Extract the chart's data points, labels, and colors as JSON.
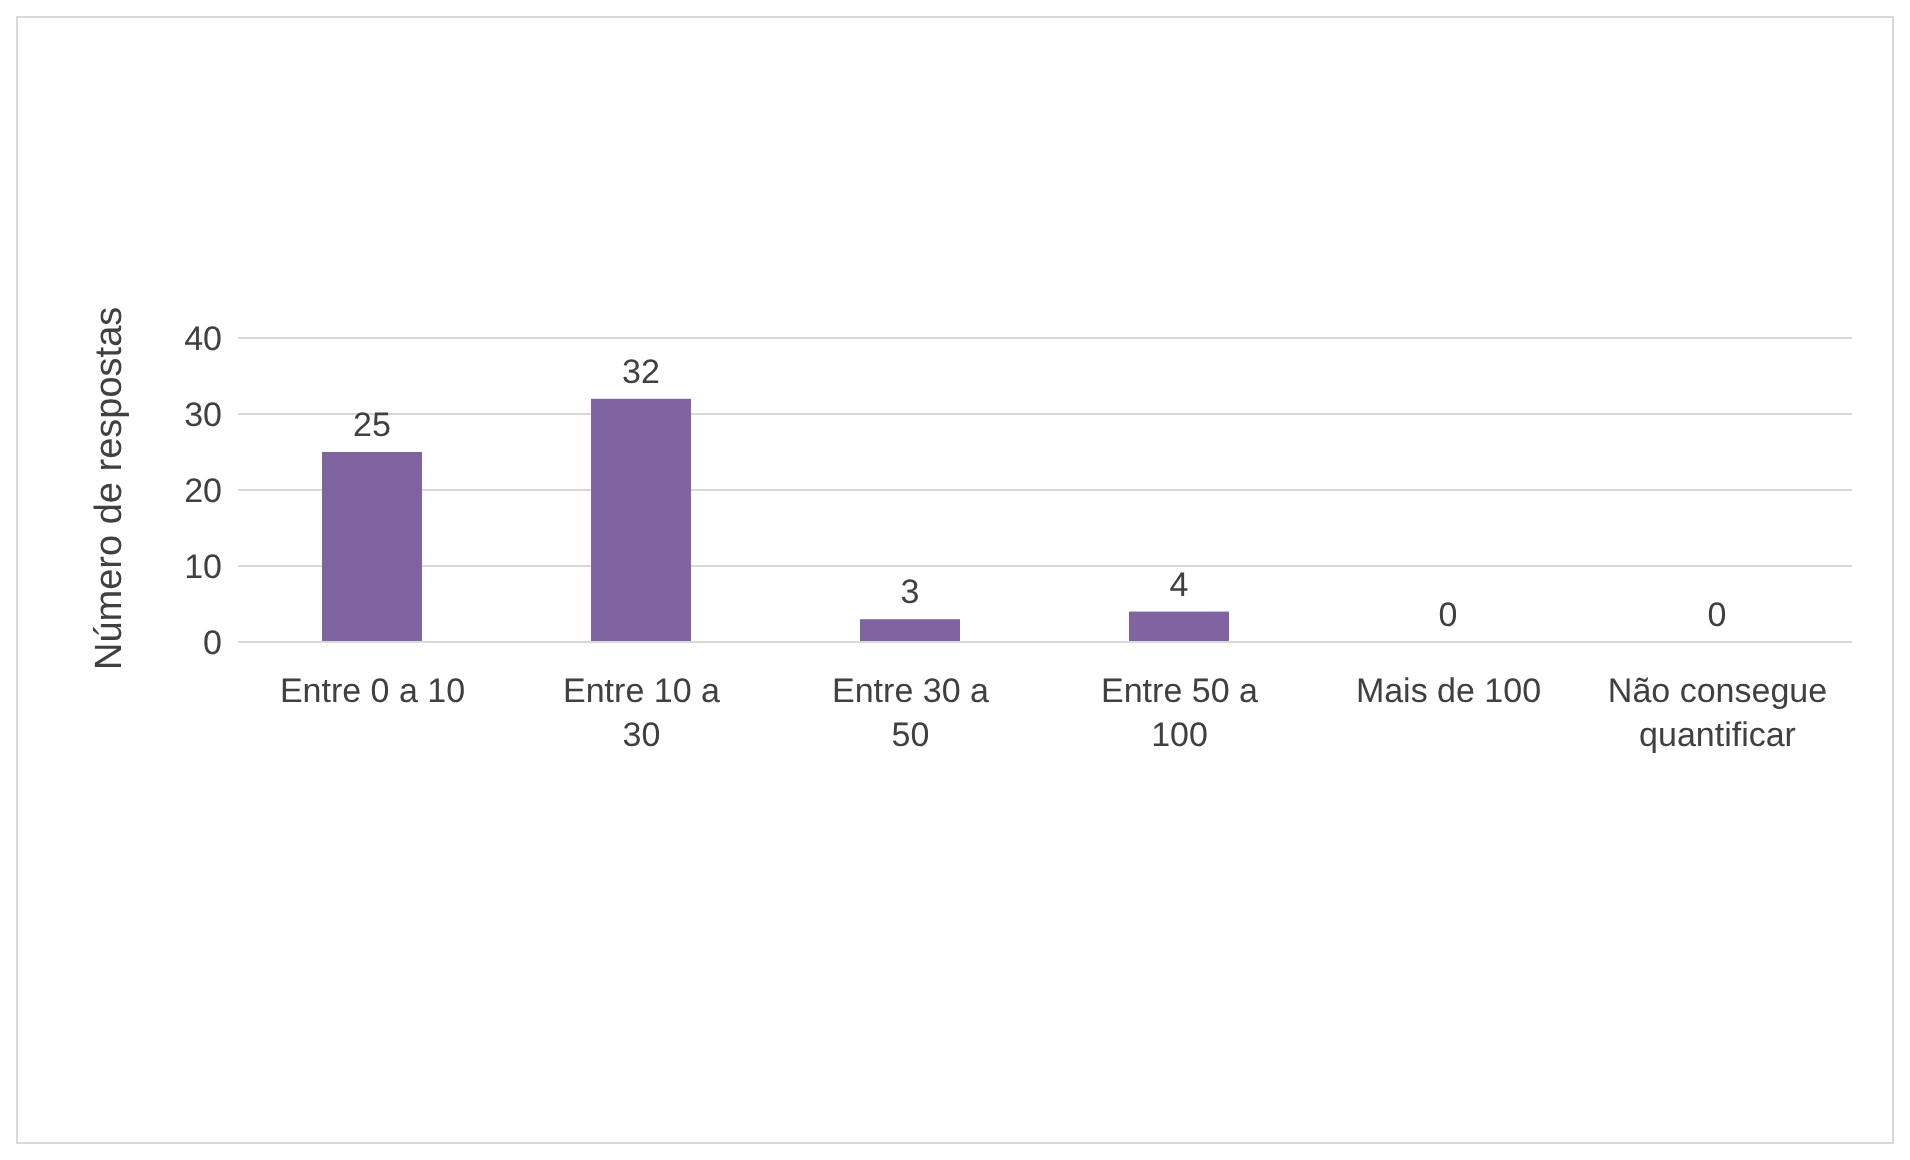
{
  "chart_data": {
    "type": "bar",
    "ylabel": "Número de respostas",
    "categories": [
      "Entre 0 a 10",
      "Entre 10 a 30",
      "Entre 30 a 50",
      "Entre 50 a 100",
      "Mais de 100",
      "Não consegue quantificar"
    ],
    "values": [
      25,
      32,
      3,
      4,
      0,
      0
    ],
    "color": "#8064a2",
    "ylim": [
      0,
      40
    ],
    "yticks": [
      0,
      10,
      20,
      30,
      40
    ],
    "grid": "y",
    "data_labels": true
  }
}
